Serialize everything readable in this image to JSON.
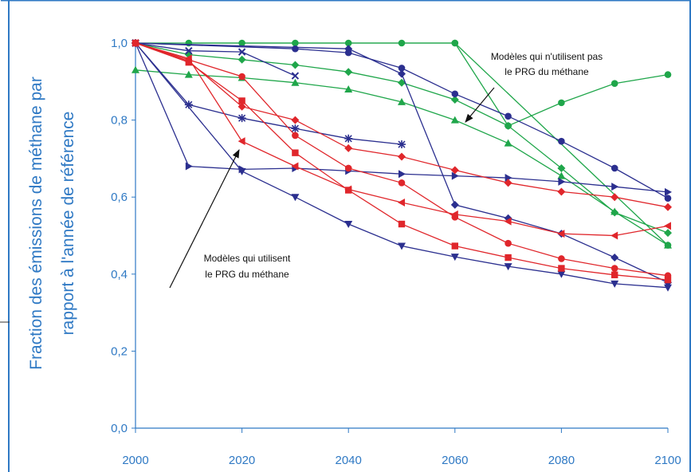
{
  "chart_data": {
    "type": "line",
    "ylabel_lines": [
      "Fraction des émissions de méthane par",
      "rapport à l'année de référence"
    ],
    "xlim": [
      2000,
      2100
    ],
    "ylim": [
      0,
      1
    ],
    "x_ticks": [
      "2000",
      "2020",
      "2040",
      "2060",
      "2080",
      "2100"
    ],
    "y_ticks": [
      "0,0",
      "0,2",
      "0,4",
      "0,6",
      "0,8",
      "1,0"
    ],
    "annotations": [
      {
        "lines": [
          "Modèles qui n'utilisent pas",
          "le PRG du méthane"
        ]
      },
      {
        "lines": [
          "Modèles qui utilisent",
          "le PRG du méthane"
        ]
      }
    ],
    "colors": {
      "blue": "#2b2f8f",
      "green": "#1fa64a",
      "red": "#e0262b",
      "accent": "#2f79c4"
    },
    "series": [
      {
        "color": "green",
        "marker": "circle",
        "points": [
          [
            2010,
            1.0
          ],
          [
            2020,
            1.0
          ],
          [
            2030,
            1.0
          ],
          [
            2040,
            1.0
          ],
          [
            2050,
            1.0
          ],
          [
            2060,
            1.0
          ],
          [
            2070,
            0.785
          ],
          [
            2080,
            0.845
          ],
          [
            2090,
            0.895
          ],
          [
            2100,
            0.918
          ]
        ]
      },
      {
        "color": "green",
        "marker": "diamond",
        "points": [
          [
            2000,
            1.0
          ],
          [
            2010,
            0.97
          ],
          [
            2020,
            0.957
          ],
          [
            2030,
            0.943
          ],
          [
            2040,
            0.925
          ],
          [
            2050,
            0.897
          ],
          [
            2060,
            0.853
          ],
          [
            2070,
            0.785
          ],
          [
            2080,
            0.675
          ],
          [
            2090,
            0.56
          ],
          [
            2100,
            0.507
          ]
        ]
      },
      {
        "color": "green",
        "marker": "triangle-up",
        "points": [
          [
            2000,
            0.93
          ],
          [
            2010,
            0.918
          ],
          [
            2020,
            0.91
          ],
          [
            2030,
            0.897
          ],
          [
            2040,
            0.88
          ],
          [
            2050,
            0.847
          ],
          [
            2060,
            0.8
          ],
          [
            2070,
            0.74
          ],
          [
            2080,
            0.655
          ],
          [
            2090,
            0.562
          ],
          [
            2100,
            0.475
          ]
        ]
      },
      {
        "color": "green",
        "marker": "circle",
        "points": [
          [
            2000,
            1.0
          ],
          [
            2060,
            1.0
          ],
          [
            2100,
            0.475
          ]
        ]
      },
      {
        "color": "blue",
        "marker": "x",
        "points": [
          [
            2000,
            1.0
          ],
          [
            2010,
            0.98
          ],
          [
            2020,
            0.977
          ],
          [
            2030,
            0.915
          ]
        ]
      },
      {
        "color": "blue",
        "marker": "circle",
        "points": [
          [
            2000,
            1.0
          ],
          [
            2030,
            0.985
          ],
          [
            2040,
            0.975
          ],
          [
            2050,
            0.935
          ],
          [
            2060,
            0.868
          ],
          [
            2070,
            0.81
          ],
          [
            2080,
            0.745
          ],
          [
            2090,
            0.675
          ],
          [
            2100,
            0.597
          ]
        ]
      },
      {
        "color": "blue",
        "marker": "diamond",
        "points": [
          [
            2000,
            1.0
          ],
          [
            2040,
            0.985
          ],
          [
            2050,
            0.92
          ],
          [
            2060,
            0.58
          ],
          [
            2070,
            0.545
          ],
          [
            2080,
            0.505
          ],
          [
            2090,
            0.443
          ],
          [
            2100,
            0.378
          ]
        ]
      },
      {
        "color": "blue",
        "marker": "asterisk",
        "points": [
          [
            2000,
            1.0
          ],
          [
            2010,
            0.84
          ],
          [
            2020,
            0.805
          ],
          [
            2030,
            0.778
          ],
          [
            2040,
            0.752
          ],
          [
            2050,
            0.737
          ]
        ]
      },
      {
        "color": "blue",
        "marker": "triangle-right",
        "points": [
          [
            2000,
            1.0
          ],
          [
            2010,
            0.68
          ],
          [
            2020,
            0.672
          ],
          [
            2030,
            0.675
          ],
          [
            2040,
            0.668
          ],
          [
            2050,
            0.66
          ],
          [
            2060,
            0.655
          ],
          [
            2070,
            0.65
          ],
          [
            2080,
            0.64
          ],
          [
            2090,
            0.627
          ],
          [
            2100,
            0.613
          ]
        ]
      },
      {
        "color": "blue",
        "marker": "triangle-down",
        "points": [
          [
            2000,
            1.0
          ],
          [
            2020,
            0.667
          ],
          [
            2030,
            0.6
          ],
          [
            2040,
            0.53
          ],
          [
            2050,
            0.473
          ],
          [
            2060,
            0.445
          ],
          [
            2070,
            0.42
          ],
          [
            2080,
            0.4
          ],
          [
            2090,
            0.375
          ],
          [
            2100,
            0.365
          ]
        ]
      },
      {
        "color": "red",
        "marker": "diamond",
        "points": [
          [
            2000,
            1.0
          ],
          [
            2010,
            0.953
          ],
          [
            2020,
            0.835
          ],
          [
            2030,
            0.8
          ],
          [
            2040,
            0.727
          ],
          [
            2050,
            0.705
          ],
          [
            2060,
            0.67
          ],
          [
            2070,
            0.637
          ],
          [
            2080,
            0.614
          ],
          [
            2090,
            0.6
          ],
          [
            2100,
            0.574
          ]
        ]
      },
      {
        "color": "red",
        "marker": "triangle-left",
        "points": [
          [
            2000,
            1.0
          ],
          [
            2010,
            0.96
          ],
          [
            2020,
            0.745
          ],
          [
            2030,
            0.68
          ],
          [
            2040,
            0.62
          ],
          [
            2050,
            0.586
          ],
          [
            2060,
            0.555
          ],
          [
            2070,
            0.537
          ],
          [
            2080,
            0.505
          ],
          [
            2090,
            0.5
          ],
          [
            2100,
            0.525
          ]
        ]
      },
      {
        "color": "red",
        "marker": "square",
        "points": [
          [
            2000,
            1.0
          ],
          [
            2010,
            0.95
          ],
          [
            2020,
            0.85
          ],
          [
            2030,
            0.715
          ],
          [
            2040,
            0.618
          ],
          [
            2050,
            0.53
          ],
          [
            2060,
            0.473
          ],
          [
            2070,
            0.443
          ],
          [
            2080,
            0.415
          ],
          [
            2090,
            0.398
          ],
          [
            2100,
            0.385
          ]
        ]
      },
      {
        "color": "red",
        "marker": "circle",
        "points": [
          [
            2000,
            1.0
          ],
          [
            2020,
            0.913
          ],
          [
            2030,
            0.76
          ],
          [
            2040,
            0.675
          ],
          [
            2050,
            0.637
          ],
          [
            2060,
            0.548
          ],
          [
            2070,
            0.48
          ],
          [
            2080,
            0.44
          ],
          [
            2090,
            0.415
          ],
          [
            2100,
            0.396
          ]
        ]
      }
    ]
  }
}
